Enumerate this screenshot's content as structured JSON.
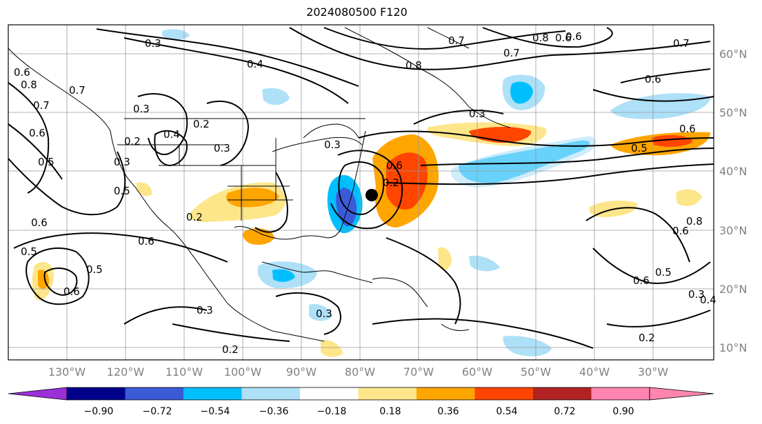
{
  "title": "2024080500 F120",
  "lat_labels": [
    "60°N",
    "50°N",
    "40°N",
    "30°N",
    "20°N",
    "10°N"
  ],
  "lon_labels": [
    "130°W",
    "120°W",
    "110°W",
    "100°W",
    "90°W",
    "80°W",
    "70°W",
    "60°W",
    "50°W",
    "40°W",
    "30°W"
  ],
  "colorbar": {
    "ticks": [
      "−0.90",
      "−0.72",
      "−0.54",
      "−0.36",
      "−0.18",
      "0.18",
      "0.36",
      "0.54",
      "0.72",
      "0.90"
    ],
    "colors": [
      "#9b30d9",
      "#00008b",
      "#3b5bd6",
      "#00bfff",
      "#aee0f8",
      "#ffffff",
      "#fde68a",
      "#ffa500",
      "#ff4500",
      "#b22222",
      "#ff85b0"
    ]
  },
  "contour_labels": [
    "0.3",
    "0.4",
    "0.7",
    "0.8",
    "0.6",
    "0.7",
    "0.3",
    "0.8",
    "0.7",
    "0.5",
    "0.6",
    "0.7",
    "0.3",
    "0.4",
    "0.2",
    "0.3",
    "0.2",
    "0.3",
    "0.5",
    "0.6",
    "0.6",
    "0.5",
    "0.2",
    "0.3",
    "0.2",
    "0.6",
    "0.4",
    "0.6",
    "0.5",
    "0.6",
    "0.5",
    "0.6",
    "0.2",
    "0.3",
    "0.3",
    "0.2",
    "0.6",
    "0.5",
    "0.3",
    "0.6",
    "0.8",
    "0.6",
    "0.8",
    "0.7",
    "0.6"
  ],
  "storm_marker": "storm-center"
}
